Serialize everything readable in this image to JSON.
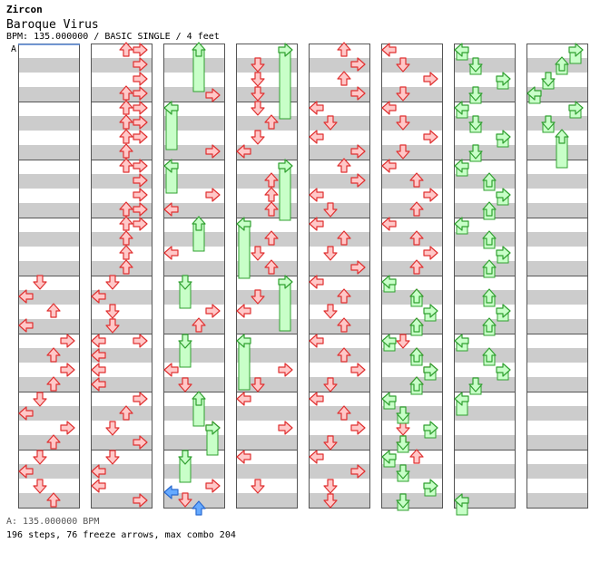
{
  "header": {
    "artist": "Zircon",
    "title": "Baroque Virus",
    "meta": "BPM: 135.000000 / BASIC SINGLE / 4 feet",
    "bpm_marker": "A"
  },
  "footer": {
    "bpm_line": "A: 135.000000 BPM",
    "stats": "196 steps, 76 freeze arrows, max combo 204"
  },
  "colors": {
    "arrow_fill": "#ffc8c8",
    "arrow_stroke": "#e03030",
    "freeze_fill": "#c8ffc8",
    "freeze_stroke": "#30a030",
    "shock_fill": "#66aaff",
    "stripe": "#cccccc"
  }
}
